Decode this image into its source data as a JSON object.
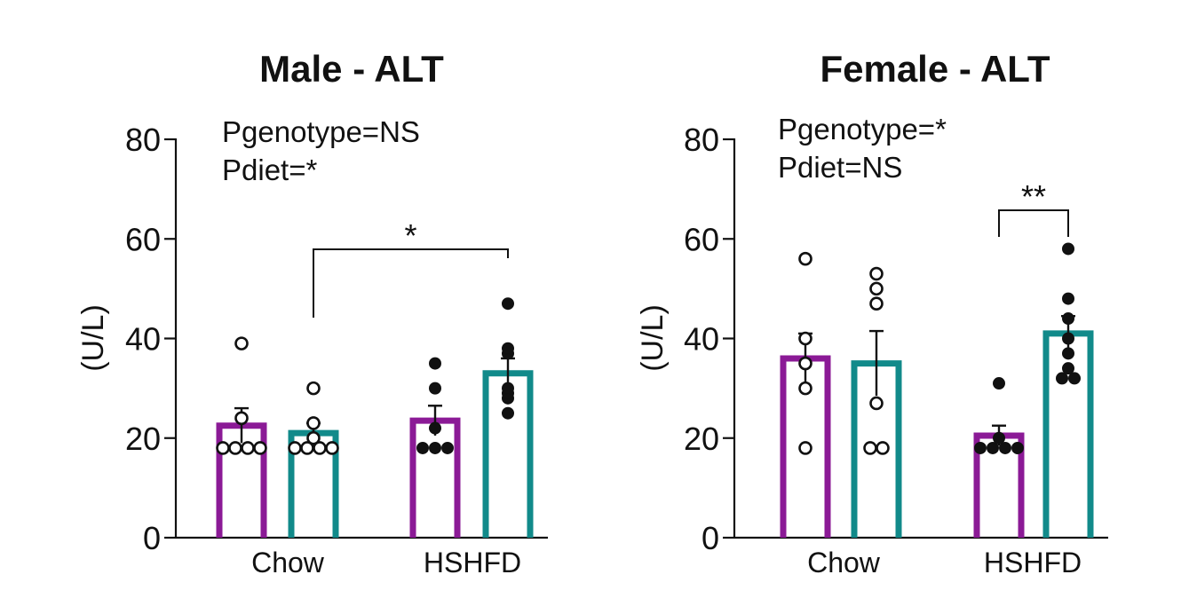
{
  "colors": {
    "purple": "#8b1a96",
    "teal": "#118a8a",
    "ink": "#111111"
  },
  "chart_data": [
    {
      "type": "bar",
      "title": "Male - ALT",
      "ylabel": "(U/L)",
      "xlabel": "",
      "ylim": [
        0,
        80
      ],
      "yticks": [
        "0",
        "20",
        "40",
        "60",
        "80"
      ],
      "grid": false,
      "categories": [
        "Chow",
        "HSHFD"
      ],
      "annotations": [
        "Pgenotype=NS",
        "Pdiet=*"
      ],
      "bars": [
        {
          "category": "Chow",
          "color": "purple",
          "fill": "open",
          "mean": 22.5,
          "sem": 3.5,
          "points": [
            39,
            24,
            18,
            18,
            18,
            18
          ]
        },
        {
          "category": "Chow",
          "color": "teal",
          "fill": "open",
          "mean": 21,
          "sem": 2,
          "points": [
            30,
            23,
            20,
            18,
            18,
            18,
            18
          ]
        },
        {
          "category": "HSHFD",
          "color": "purple",
          "fill": "solid",
          "mean": 23.5,
          "sem": 3,
          "points": [
            35,
            30,
            22,
            18,
            18,
            18
          ]
        },
        {
          "category": "HSHFD",
          "color": "teal",
          "fill": "solid",
          "mean": 33,
          "sem": 3,
          "points": [
            47,
            38,
            37,
            30,
            29,
            28,
            25
          ]
        }
      ],
      "significance": [
        {
          "from_bar": 1,
          "to_bar": 3,
          "label": "*"
        }
      ]
    },
    {
      "type": "bar",
      "title": "Female - ALT",
      "ylabel": "(U/L)",
      "xlabel": "",
      "ylim": [
        0,
        80
      ],
      "yticks": [
        "0",
        "20",
        "40",
        "60",
        "80"
      ],
      "grid": false,
      "categories": [
        "Chow",
        "HSHFD"
      ],
      "annotations": [
        "Pgenotype=*",
        "Pdiet=NS"
      ],
      "bars": [
        {
          "category": "Chow",
          "color": "purple",
          "fill": "open",
          "mean": 36,
          "sem": 5,
          "points": [
            56,
            40,
            35,
            30,
            18
          ]
        },
        {
          "category": "Chow",
          "color": "teal",
          "fill": "open",
          "mean": 35,
          "sem": 6.5,
          "points": [
            53,
            50,
            47,
            27,
            18,
            18
          ]
        },
        {
          "category": "HSHFD",
          "color": "purple",
          "fill": "solid",
          "mean": 20.5,
          "sem": 2,
          "points": [
            31,
            20,
            18,
            18,
            18,
            18
          ]
        },
        {
          "category": "HSHFD",
          "color": "teal",
          "fill": "solid",
          "mean": 41,
          "sem": 3.5,
          "points": [
            58,
            48,
            44,
            40,
            37,
            34,
            32,
            32
          ]
        }
      ],
      "significance": [
        {
          "from_bar": 2,
          "to_bar": 3,
          "label": "**"
        }
      ]
    }
  ]
}
